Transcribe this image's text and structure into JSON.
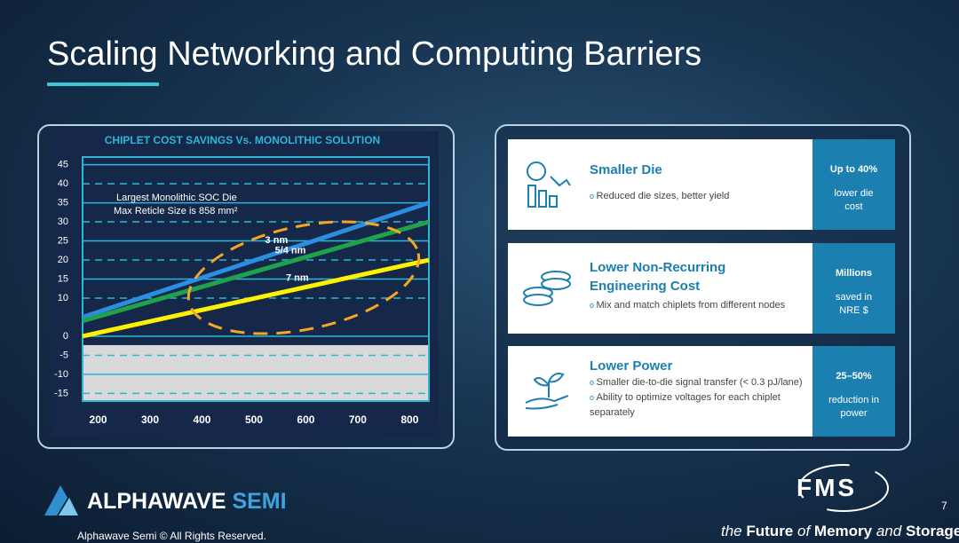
{
  "header": {
    "title": "Scaling Networking and Computing Barriers"
  },
  "chart_data": {
    "type": "line",
    "title": "CHIPLET COST SAVINGS Vs. MONOLITHIC SOLUTION",
    "x": [
      170,
      837
    ],
    "series": [
      {
        "name": "3 nm",
        "color": "#2b8ee0",
        "values": [
          5,
          35
        ]
      },
      {
        "name": "5/4 nm",
        "color": "#1fa24a",
        "values": [
          4,
          30
        ]
      },
      {
        "name": "7 nm",
        "color": "#fff200",
        "values": [
          0,
          20
        ]
      }
    ],
    "xlim": [
      170,
      837
    ],
    "xticks": [
      200,
      300,
      400,
      500,
      600,
      700,
      800
    ],
    "ylim": [
      -17,
      47
    ],
    "yticks": [
      45,
      40,
      35,
      30,
      25,
      20,
      15,
      10,
      0,
      -5,
      -10,
      -15
    ],
    "grid": true,
    "annotations": [
      "Largest Monolithic SOC Die",
      "Max Reticle Size is 858 mm²"
    ]
  },
  "cards": [
    {
      "title": "Smaller Die",
      "bullets": [
        "Reduced die sizes, better yield"
      ],
      "stat": "Up to 40%",
      "stat_note": "lower die cost"
    },
    {
      "title": "Lower Non-Recurring Engineering Cost",
      "bullets": [
        "Mix and match chiplets from different nodes"
      ],
      "stat": "Millions",
      "stat_note": "saved in NRE $"
    },
    {
      "title": "Lower Power",
      "bullets": [
        "Smaller die-to-die signal transfer (< 0.3 pJ/lane)",
        "Ability to optimize voltages for each chiplet separately"
      ],
      "stat": "25–50%",
      "stat_note": "reduction in power"
    }
  ],
  "footer": {
    "brand_a": "ALPHAWAVE",
    "brand_b": "SEMI",
    "copyright": "Alphawave Semi © All Rights Reserved.",
    "page": "7",
    "fms": "FMS",
    "tag_a": "the",
    "tag_b": "Future",
    "tag_c": "of",
    "tag_d": "Memory",
    "tag_e": "and",
    "tag_f": "Storage"
  }
}
